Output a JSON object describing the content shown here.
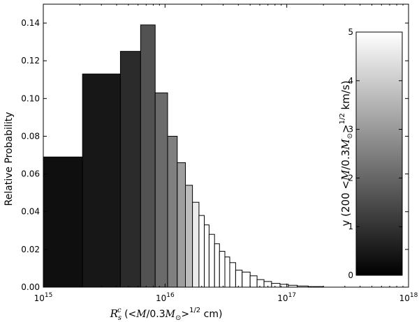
{
  "chart_data": {
    "type": "bar",
    "subtype": "log-x histogram with colorbar",
    "xlabel": "R_s^c (<M/0.3M_⊙>^{1/2} cm)",
    "ylabel": "Relative Probability",
    "x_scale": "log",
    "xlim": [
      1000000000000000.0,
      1e+18
    ],
    "ylim": [
      0,
      0.15
    ],
    "x_ticks": [
      {
        "value": 1000000000000000.0,
        "base": "10",
        "exp": "15"
      },
      {
        "value": 1e+16,
        "base": "10",
        "exp": "16"
      },
      {
        "value": 1e+17,
        "base": "10",
        "exp": "17"
      },
      {
        "value": 1e+18,
        "base": "10",
        "exp": "18"
      }
    ],
    "y_ticks": [
      "0.00",
      "0.02",
      "0.04",
      "0.06",
      "0.08",
      "0.10",
      "0.12",
      "0.14"
    ],
    "grid": false,
    "bins": [
      {
        "x0": 1000000000000000.0,
        "x1": 2100000000000000.0,
        "value": 0.069,
        "v": 0.3
      },
      {
        "x0": 2100000000000000.0,
        "x1": 4300000000000000.0,
        "value": 0.113,
        "v": 0.45
      },
      {
        "x0": 4300000000000000.0,
        "x1": 6300000000000000.0,
        "value": 0.125,
        "v": 0.85
      },
      {
        "x0": 6300000000000000.0,
        "x1": 8300000000000000.0,
        "value": 0.139,
        "v": 1.6
      },
      {
        "x0": 8300000000000000.0,
        "x1": 1.05e+16,
        "value": 0.103,
        "v": 2.1
      },
      {
        "x0": 1.05e+16,
        "x1": 1.26e+16,
        "value": 0.08,
        "v": 2.5
      },
      {
        "x0": 1.26e+16,
        "x1": 1.47e+16,
        "value": 0.066,
        "v": 3.1
      },
      {
        "x0": 1.47e+16,
        "x1": 1.68e+16,
        "value": 0.054,
        "v": 3.7
      },
      {
        "x0": 1.68e+16,
        "x1": 1.9e+16,
        "value": 0.045,
        "v": 4.6
      },
      {
        "x0": 1.9e+16,
        "x1": 2.1e+16,
        "value": 0.038,
        "v": 5
      },
      {
        "x0": 2.1e+16,
        "x1": 2.3e+16,
        "value": 0.033,
        "v": 5
      },
      {
        "x0": 2.3e+16,
        "x1": 2.55e+16,
        "value": 0.028,
        "v": 5
      },
      {
        "x0": 2.55e+16,
        "x1": 2.8e+16,
        "value": 0.023,
        "v": 5
      },
      {
        "x0": 2.8e+16,
        "x1": 3.1e+16,
        "value": 0.019,
        "v": 5
      },
      {
        "x0": 3.1e+16,
        "x1": 3.4e+16,
        "value": 0.016,
        "v": 5
      },
      {
        "x0": 3.4e+16,
        "x1": 3.8e+16,
        "value": 0.013,
        "v": 5
      },
      {
        "x0": 3.8e+16,
        "x1": 4.3e+16,
        "value": 0.009,
        "v": 5
      },
      {
        "x0": 4.3e+16,
        "x1": 5e+16,
        "value": 0.008,
        "v": 5
      },
      {
        "x0": 5e+16,
        "x1": 5.7e+16,
        "value": 0.006,
        "v": 5
      },
      {
        "x0": 5.7e+16,
        "x1": 6.5e+16,
        "value": 0.004,
        "v": 5
      },
      {
        "x0": 6.5e+16,
        "x1": 7.5e+16,
        "value": 0.003,
        "v": 5
      },
      {
        "x0": 7.5e+16,
        "x1": 8.8e+16,
        "value": 0.002,
        "v": 5
      },
      {
        "x0": 8.8e+16,
        "x1": 1.03e+17,
        "value": 0.0015,
        "v": 5
      },
      {
        "x0": 1.03e+17,
        "x1": 1.22e+17,
        "value": 0.001,
        "v": 5
      },
      {
        "x0": 1.22e+17,
        "x1": 1.5e+17,
        "value": 0.0006,
        "v": 5
      },
      {
        "x0": 1.5e+17,
        "x1": 2e+17,
        "value": 0.0003,
        "v": 5
      }
    ],
    "colorbar": {
      "label": "v (200 <M/0.3M_⊙>^{1/2} km/s)",
      "range": [
        0,
        5
      ],
      "ticks": [
        "0",
        "1",
        "2",
        "3",
        "4",
        "5"
      ],
      "colormap": "gray",
      "low_color": "#000000",
      "high_color": "#ffffff"
    }
  }
}
